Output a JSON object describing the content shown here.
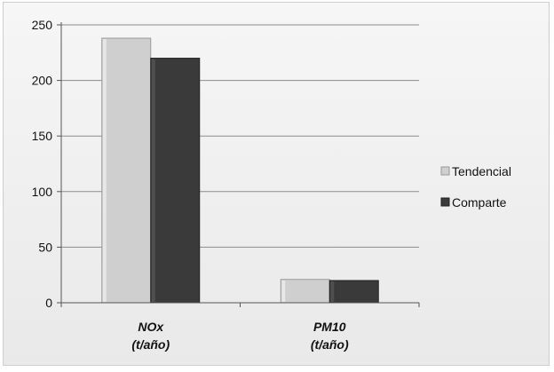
{
  "chart_data": {
    "type": "bar",
    "categories": [
      {
        "line1": "NOx",
        "line2": "(t/año)"
      },
      {
        "line1": "PM10",
        "line2": "(t/año)"
      }
    ],
    "series": [
      {
        "name": "Tendencial",
        "values": [
          238,
          21
        ],
        "color": "#cfcfcf"
      },
      {
        "name": "Comparte",
        "values": [
          220,
          20
        ],
        "color": "#3a3a3a"
      }
    ],
    "y_ticks": [
      "0",
      "50",
      "100",
      "150",
      "200",
      "250"
    ],
    "ylim": [
      0,
      250
    ],
    "grid": true,
    "legend_position": "right"
  }
}
